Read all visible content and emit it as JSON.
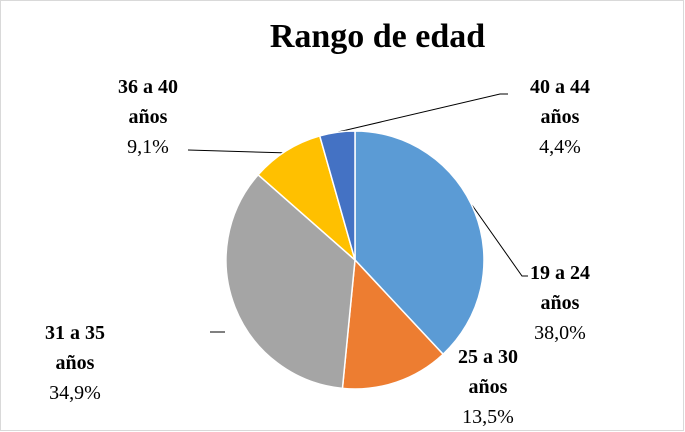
{
  "chart_data": {
    "type": "pie",
    "title": "Rango de edad",
    "categories": [
      "19 a 24 años",
      "25 a 30 años",
      "31 a 35 años",
      "36 a 40 años",
      "40 a 44 años"
    ],
    "values": [
      38.0,
      13.5,
      34.9,
      9.1,
      4.4
    ],
    "value_labels": [
      "38,0%",
      "13,5%",
      "34,9%",
      "9,1%",
      "4,4%"
    ],
    "colors": [
      "#5b9bd5",
      "#ed7d31",
      "#a5a5a5",
      "#ffc000",
      "#4472c4"
    ]
  }
}
